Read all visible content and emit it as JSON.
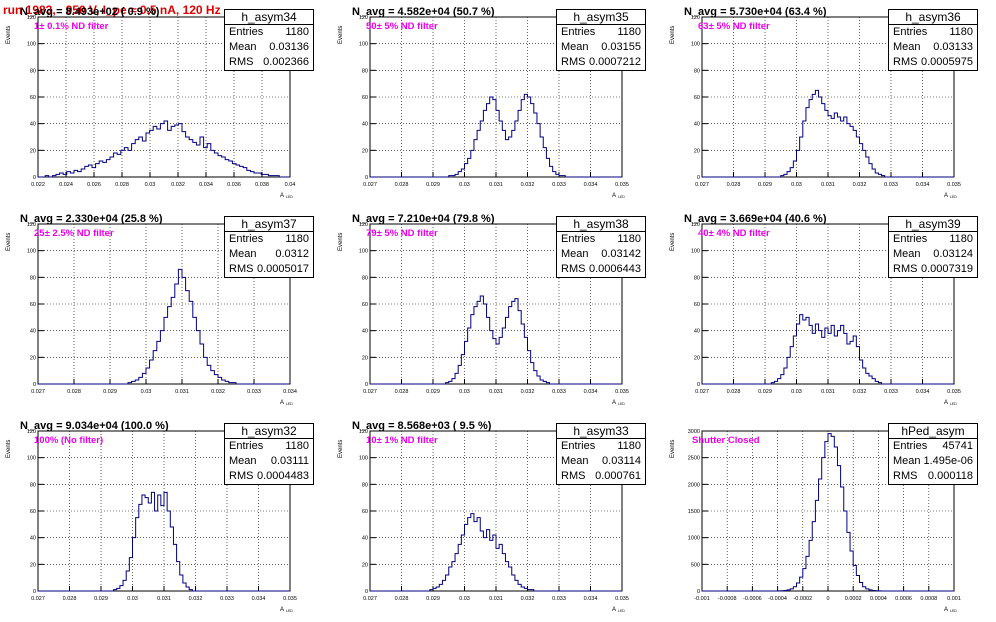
{
  "title": "run 1983,   950 V, I_pe ≈ 0.5 nA, 120 Hz",
  "y_axis_label": "Events",
  "x_axis_label": "A",
  "x_axis_sub": "LED",
  "chart_data": [
    {
      "type": "histogram",
      "hist_name": "h_asym34",
      "n_avg": "N_avg = 8.493e+02 ( 0.9 %)",
      "filter": "1± 0.1% ND filter",
      "entries": "1180",
      "mean": "0.03136",
      "rms": "0.002366",
      "xlim": [
        0.022,
        0.04
      ],
      "ylim": [
        0,
        120
      ],
      "xticks": [
        "0.022",
        "0.024",
        "0.026",
        "0.028",
        "0.03",
        "0.032",
        "0.034",
        "0.036",
        "0.038",
        "0.04"
      ],
      "yticks": [
        "0",
        "20",
        "40",
        "60",
        "80",
        "100",
        "120"
      ],
      "bin_values": [
        0,
        0,
        1,
        0,
        1,
        2,
        3,
        2,
        4,
        3,
        5,
        4,
        6,
        8,
        9,
        7,
        10,
        12,
        11,
        13,
        15,
        18,
        17,
        20,
        22,
        20,
        25,
        28,
        30,
        27,
        33,
        35,
        38,
        36,
        40,
        42,
        35,
        38,
        39,
        40,
        34,
        30,
        28,
        26,
        24,
        30,
        22,
        25,
        20,
        18,
        16,
        15,
        13,
        12,
        10,
        9,
        8,
        7,
        5,
        4,
        3,
        3,
        2,
        2,
        1,
        1,
        1,
        0,
        0,
        0
      ]
    },
    {
      "type": "histogram",
      "hist_name": "h_asym35",
      "n_avg": "N_avg = 4.582e+04 (50.7 %)",
      "filter": "50± 5% ND filter",
      "entries": "1180",
      "mean": "0.03155",
      "rms": "0.0007212",
      "xlim": [
        0.027,
        0.035
      ],
      "ylim": [
        0,
        120
      ],
      "xticks": [
        "0.027",
        "0.028",
        "0.029",
        "0.03",
        "0.031",
        "0.032",
        "0.033",
        "0.034",
        "0.035"
      ],
      "yticks": [
        "0",
        "20",
        "40",
        "60",
        "80",
        "100",
        "120"
      ],
      "bin_values": [
        0,
        0,
        0,
        0,
        0,
        0,
        0,
        0,
        0,
        0,
        0,
        0,
        0,
        0,
        0,
        0,
        0,
        0,
        0,
        0,
        0,
        0,
        0,
        0,
        0,
        1,
        1,
        2,
        4,
        6,
        10,
        14,
        20,
        28,
        35,
        42,
        50,
        55,
        60,
        58,
        50,
        42,
        35,
        28,
        30,
        35,
        42,
        50,
        58,
        62,
        60,
        55,
        48,
        40,
        30,
        22,
        14,
        8,
        4,
        2,
        1,
        1,
        0,
        0,
        0,
        0,
        0,
        0,
        0,
        0,
        0,
        0,
        0,
        0,
        0,
        0,
        0,
        0,
        0,
        0
      ]
    },
    {
      "type": "histogram",
      "hist_name": "h_asym36",
      "n_avg": "N_avg = 5.730e+04 (63.4 %)",
      "filter": "63± 5% ND filter",
      "entries": "1180",
      "mean": "0.03133",
      "rms": "0.0005975",
      "xlim": [
        0.027,
        0.035
      ],
      "ylim": [
        0,
        120
      ],
      "xticks": [
        "0.027",
        "0.028",
        "0.029",
        "0.03",
        "0.031",
        "0.032",
        "0.033",
        "0.034",
        "0.035"
      ],
      "yticks": [
        "0",
        "20",
        "40",
        "60",
        "80",
        "100",
        "120"
      ],
      "bin_values": [
        0,
        0,
        0,
        0,
        0,
        0,
        0,
        0,
        0,
        0,
        0,
        0,
        0,
        0,
        0,
        0,
        0,
        0,
        0,
        0,
        0,
        0,
        0,
        0,
        0,
        1,
        2,
        4,
        7,
        12,
        20,
        30,
        42,
        52,
        58,
        62,
        65,
        60,
        55,
        50,
        46,
        44,
        48,
        45,
        42,
        45,
        40,
        38,
        35,
        30,
        25,
        20,
        15,
        10,
        6,
        3,
        2,
        1,
        0,
        0,
        0,
        0,
        0,
        0,
        0,
        0,
        0,
        0,
        0,
        0,
        0,
        0,
        0,
        0,
        0,
        0,
        0,
        0,
        0,
        0
      ]
    },
    {
      "type": "histogram",
      "hist_name": "h_asym37",
      "n_avg": "N_avg = 2.330e+04 (25.8 %)",
      "filter": "25± 2.5% ND filter",
      "entries": "1180",
      "mean": "0.0312",
      "rms": "0.0005017",
      "xlim": [
        0.027,
        0.034
      ],
      "ylim": [
        0,
        120
      ],
      "xticks": [
        "0.027",
        "0.028",
        "0.029",
        "0.03",
        "0.031",
        "0.032",
        "0.033",
        "0.034"
      ],
      "yticks": [
        "0",
        "20",
        "40",
        "60",
        "80",
        "100",
        "120"
      ],
      "bin_values": [
        0,
        0,
        0,
        0,
        0,
        0,
        0,
        0,
        0,
        0,
        0,
        0,
        0,
        0,
        0,
        0,
        0,
        0,
        0,
        0,
        0,
        0,
        0,
        0,
        0,
        1,
        2,
        3,
        5,
        8,
        12,
        18,
        25,
        32,
        40,
        50,
        58,
        65,
        75,
        86,
        80,
        70,
        62,
        50,
        40,
        30,
        20,
        14,
        10,
        7,
        5,
        3,
        2,
        1,
        1,
        0,
        0,
        0,
        0,
        0,
        0,
        0,
        0,
        0,
        0,
        0,
        0,
        0,
        0,
        0
      ]
    },
    {
      "type": "histogram",
      "hist_name": "h_asym38",
      "n_avg": "N_avg = 7.210e+04 (79.8 %)",
      "filter": "79± 5% ND filter",
      "entries": "1180",
      "mean": "0.03142",
      "rms": "0.0006443",
      "xlim": [
        0.027,
        0.035
      ],
      "ylim": [
        0,
        120
      ],
      "xticks": [
        "0.027",
        "0.028",
        "0.029",
        "0.03",
        "0.031",
        "0.032",
        "0.033",
        "0.034",
        "0.035"
      ],
      "yticks": [
        "0",
        "20",
        "40",
        "60",
        "80",
        "100",
        "120"
      ],
      "bin_values": [
        0,
        0,
        0,
        0,
        0,
        0,
        0,
        0,
        0,
        0,
        0,
        0,
        0,
        0,
        0,
        0,
        0,
        0,
        0,
        0,
        0,
        0,
        0,
        0,
        1,
        2,
        4,
        8,
        14,
        22,
        32,
        42,
        52,
        58,
        62,
        66,
        60,
        50,
        40,
        34,
        30,
        35,
        42,
        50,
        58,
        62,
        64,
        55,
        45,
        35,
        25,
        16,
        10,
        6,
        3,
        2,
        1,
        0,
        0,
        0,
        0,
        0,
        0,
        0,
        0,
        0,
        0,
        0,
        0,
        0,
        0,
        0,
        0,
        0,
        0,
        0,
        0,
        0,
        0,
        0
      ]
    },
    {
      "type": "histogram",
      "hist_name": "h_asym39",
      "n_avg": "N_avg = 3.669e+04 (40.6 %)",
      "filter": "40± 4% ND filter",
      "entries": "1180",
      "mean": "0.03124",
      "rms": "0.0007319",
      "xlim": [
        0.027,
        0.035
      ],
      "ylim": [
        0,
        120
      ],
      "xticks": [
        "0.027",
        "0.028",
        "0.029",
        "0.03",
        "0.031",
        "0.032",
        "0.033",
        "0.034",
        "0.035"
      ],
      "yticks": [
        "0",
        "20",
        "40",
        "60",
        "80",
        "100",
        "120"
      ],
      "bin_values": [
        0,
        0,
        0,
        0,
        0,
        0,
        0,
        0,
        0,
        0,
        0,
        0,
        0,
        0,
        0,
        0,
        0,
        0,
        0,
        0,
        0,
        0,
        1,
        2,
        4,
        7,
        12,
        20,
        28,
        36,
        45,
        52,
        48,
        50,
        44,
        38,
        45,
        40,
        35,
        42,
        38,
        44,
        36,
        40,
        44,
        38,
        30,
        32,
        36,
        28,
        18,
        12,
        8,
        6,
        4,
        2,
        1,
        0,
        0,
        0,
        0,
        0,
        0,
        0,
        0,
        0,
        0,
        0,
        0,
        0,
        0,
        0,
        0,
        0,
        0,
        0,
        0,
        0,
        0,
        0
      ]
    },
    {
      "type": "histogram",
      "hist_name": "h_asym32",
      "n_avg": "N_avg = 9.034e+04 (100.0 %)",
      "filter": "100% (No filter)",
      "entries": "1180",
      "mean": "0.03111",
      "rms": "0.0004483",
      "xlim": [
        0.027,
        0.035
      ],
      "ylim": [
        0,
        120
      ],
      "xticks": [
        "0.027",
        "0.028",
        "0.029",
        "0.03",
        "0.031",
        "0.032",
        "0.033",
        "0.034",
        "0.035"
      ],
      "yticks": [
        "0",
        "20",
        "40",
        "60",
        "80",
        "100",
        "120"
      ],
      "bin_values": [
        0,
        0,
        0,
        0,
        0,
        0,
        0,
        0,
        0,
        0,
        0,
        0,
        0,
        0,
        0,
        0,
        0,
        0,
        0,
        0,
        0,
        0,
        0,
        0,
        1,
        2,
        4,
        8,
        15,
        25,
        40,
        55,
        65,
        72,
        70,
        66,
        74,
        60,
        72,
        64,
        74,
        60,
        48,
        35,
        22,
        12,
        6,
        3,
        1,
        0,
        0,
        0,
        0,
        0,
        0,
        0,
        0,
        0,
        0,
        0,
        0,
        0,
        0,
        0,
        0,
        0,
        0,
        0,
        0,
        0,
        0,
        0,
        0,
        0,
        0,
        0,
        0,
        0,
        0,
        0
      ]
    },
    {
      "type": "histogram",
      "hist_name": "h_asym33",
      "n_avg": "N_avg = 8.568e+03 ( 9.5 %)",
      "filter": "10± 1% ND filter",
      "entries": "1180",
      "mean": "0.03114",
      "rms": "0.000761",
      "xlim": [
        0.027,
        0.035
      ],
      "ylim": [
        0,
        120
      ],
      "xticks": [
        "0.027",
        "0.028",
        "0.029",
        "0.03",
        "0.031",
        "0.032",
        "0.033",
        "0.034",
        "0.035"
      ],
      "yticks": [
        "0",
        "20",
        "40",
        "60",
        "80",
        "100",
        "120"
      ],
      "bin_values": [
        0,
        0,
        0,
        0,
        0,
        0,
        0,
        0,
        0,
        0,
        0,
        0,
        0,
        0,
        0,
        0,
        0,
        0,
        0,
        1,
        2,
        3,
        5,
        8,
        12,
        18,
        22,
        28,
        35,
        42,
        50,
        55,
        58,
        52,
        55,
        45,
        40,
        46,
        38,
        42,
        32,
        35,
        28,
        22,
        18,
        12,
        8,
        5,
        3,
        2,
        1,
        1,
        0,
        0,
        0,
        0,
        0,
        0,
        0,
        0,
        0,
        0,
        0,
        0,
        0,
        0,
        0,
        0,
        0,
        0,
        0,
        0,
        0,
        0,
        0,
        0,
        0,
        0,
        0,
        0
      ]
    },
    {
      "type": "histogram",
      "hist_name": "hPed_asym",
      "n_avg": "",
      "filter": "Shutter Closed",
      "entries": "45741",
      "mean": "1.495e-06",
      "rms": "0.000118",
      "xlim": [
        -0.001,
        0.001
      ],
      "ylim": [
        0,
        3000
      ],
      "xticks": [
        "-0.001",
        "-0.0008",
        "-0.0006",
        "-0.0004",
        "-0.0002",
        "0",
        "0.0002",
        "0.0004",
        "0.0006",
        "0.0008",
        "0.001"
      ],
      "yticks": [
        "0",
        "500",
        "1000",
        "1500",
        "2000",
        "2500",
        "3000"
      ],
      "bin_values": [
        0,
        0,
        0,
        0,
        0,
        0,
        0,
        0,
        0,
        0,
        0,
        0,
        0,
        0,
        0,
        0,
        0,
        0,
        0,
        0,
        0,
        0,
        0,
        0,
        2,
        5,
        10,
        20,
        40,
        80,
        150,
        260,
        420,
        650,
        950,
        1300,
        1700,
        2100,
        2500,
        2800,
        2950,
        2900,
        2700,
        2350,
        1950,
        1500,
        1100,
        750,
        480,
        290,
        160,
        80,
        40,
        20,
        10,
        5,
        2,
        0,
        0,
        0,
        0,
        0,
        0,
        0,
        0,
        0,
        0,
        0,
        0,
        0,
        0,
        0,
        0,
        0,
        0,
        0,
        0,
        0,
        0,
        0
      ]
    }
  ]
}
